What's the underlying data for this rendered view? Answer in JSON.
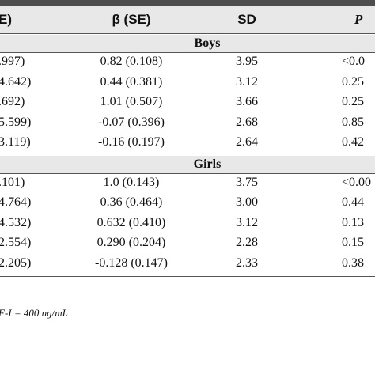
{
  "table": {
    "header": [
      "E)",
      "β (SE)",
      "SD",
      "P"
    ],
    "groups": [
      {
        "label": "Boys",
        "rows": [
          [
            ".997)",
            "0.82 (0.108)",
            "3.95",
            "<0.0"
          ],
          [
            "4.642)",
            "0.44 (0.381)",
            "3.12",
            "0.25"
          ],
          [
            ".692)",
            "1.01 (0.507)",
            "3.66",
            "0.25"
          ],
          [
            "5.599)",
            "-0.07 (0.396)",
            "2.68",
            "0.85"
          ],
          [
            "3.119)",
            "-0.16 (0.197)",
            "2.64",
            "0.42"
          ]
        ]
      },
      {
        "label": "Girls",
        "rows": [
          [
            ".101)",
            "1.0 (0.143)",
            "3.75",
            "<0.00"
          ],
          [
            "4.764)",
            "0.36 (0.464)",
            "3.00",
            "0.44"
          ],
          [
            "4.532)",
            "0.632 (0.410)",
            "3.12",
            "0.13"
          ],
          [
            "2.554)",
            "0.290 (0.204)",
            "2.28",
            "0.15"
          ],
          [
            "2.205)",
            "-0.128 (0.147)",
            "2.33",
            "0.38"
          ]
        ]
      }
    ],
    "footnote": "F-I = 400 ng/mL"
  }
}
